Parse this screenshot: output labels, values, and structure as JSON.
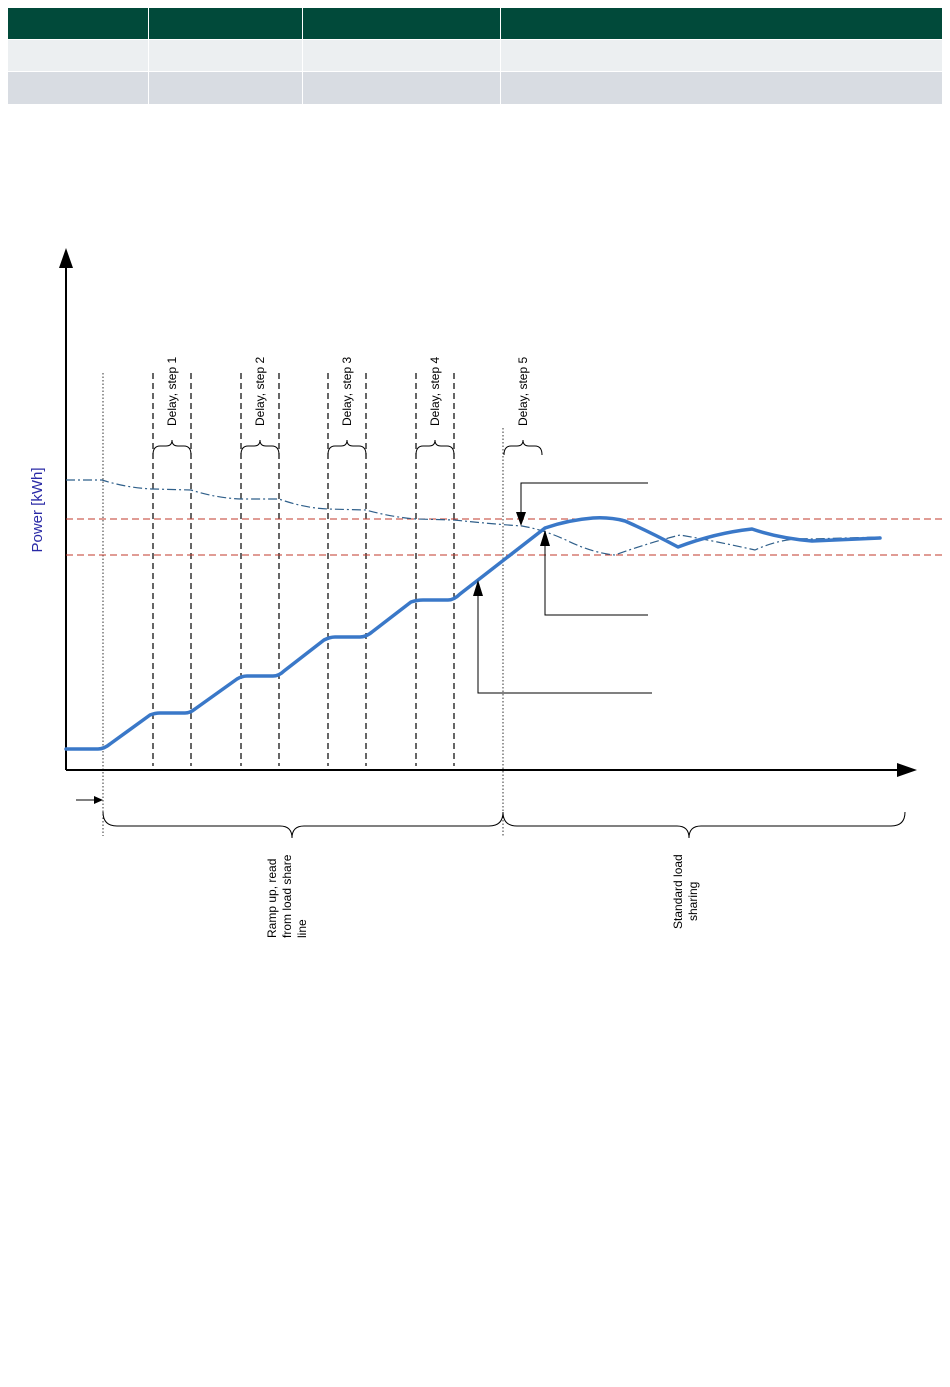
{
  "header_table": {
    "rows": [
      [
        "",
        "",
        "",
        ""
      ],
      [
        "",
        "",
        "",
        ""
      ],
      [
        "",
        "",
        "",
        ""
      ]
    ]
  },
  "diagram": {
    "y_axis_label": "Power [kWh]",
    "delay_steps": [
      "Delay, step 1",
      "Delay, step 2",
      "Delay, step 3",
      "Delay, step 4",
      "Delay, step 5"
    ],
    "phase_labels": {
      "ramp_up": [
        "Ramp up, read",
        "from load share",
        "line"
      ],
      "standard": [
        "Standard load",
        "sharing"
      ]
    },
    "colors": {
      "header": "#014a3a",
      "power_line": "#3a78c8",
      "target_line": "#2f5f8a",
      "limit_lines": "#c0392b",
      "axis": "#000000",
      "y_label": "#2a2aa6"
    }
  }
}
